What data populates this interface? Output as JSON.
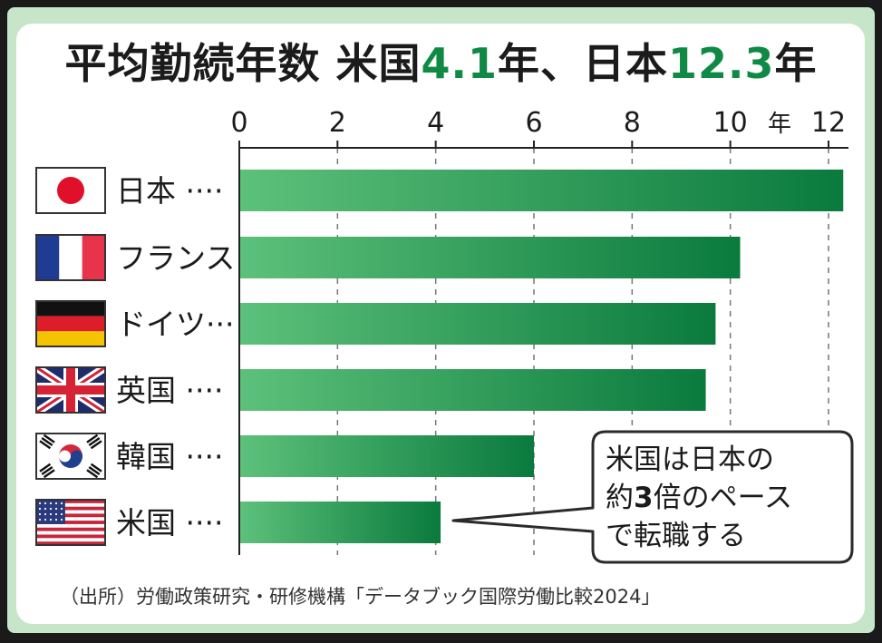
{
  "title": {
    "prefix": "平均勤続年数 米国",
    "us_value": "4.1",
    "mid": "年、日本",
    "jp_value": "12.3",
    "suffix": "年"
  },
  "callout": {
    "line1": "米国は日本の",
    "line2_pre": "約",
    "line2_num": "3",
    "line2_post": "倍のペース",
    "line3": "で転職する"
  },
  "source": "（出所）労働政策研究・研修機構「データブック国際労働比較2024」",
  "chart_data": {
    "type": "bar",
    "orientation": "horizontal",
    "title": "平均勤続年数 米国4.1年、日本12.3年",
    "unit": "年",
    "xlim": [
      0,
      12.5
    ],
    "ticks": [
      0,
      2,
      4,
      6,
      8,
      10,
      12
    ],
    "grid": true,
    "categories": [
      "日本",
      "フランス",
      "ドイツ",
      "英国",
      "韓国",
      "米国"
    ],
    "category_labels": [
      "日本 ····",
      "フランス",
      "ドイツ···",
      "英国 ····",
      "韓国 ····",
      "米国 ····"
    ],
    "flags": [
      "japan-flag-icon",
      "france-flag-icon",
      "germany-flag-icon",
      "uk-flag-icon",
      "korea-flag-icon",
      "usa-flag-icon"
    ],
    "values": [
      12.3,
      10.2,
      9.7,
      9.5,
      6.0,
      4.1
    ],
    "bar_color_light": "#5cc17a",
    "bar_color_dark": "#0a7a3d"
  }
}
